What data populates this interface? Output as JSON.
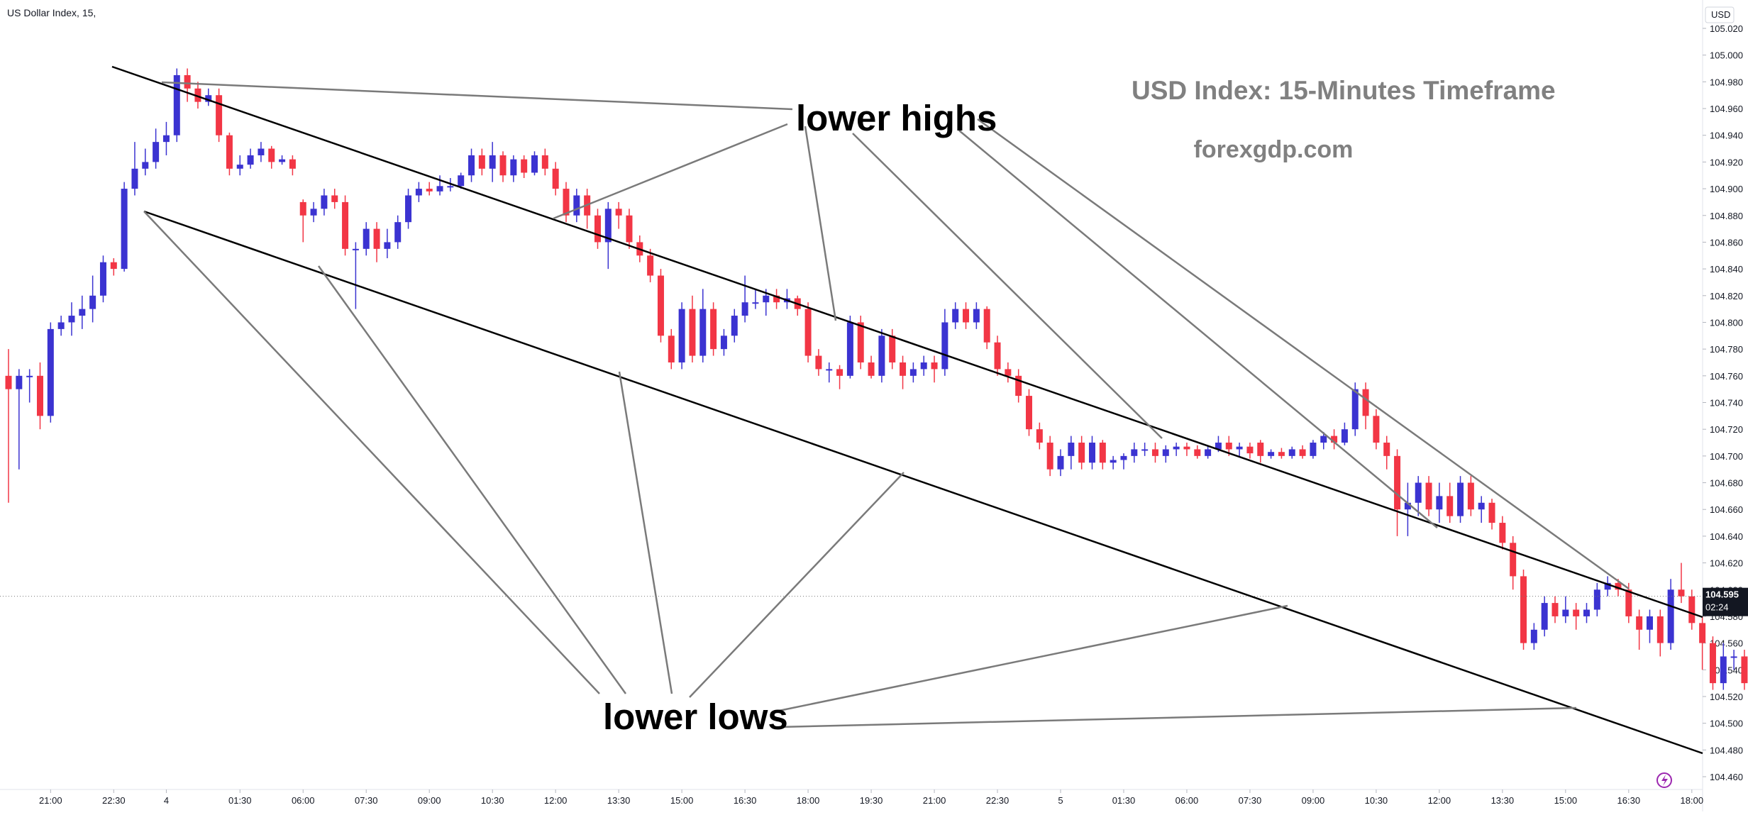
{
  "header": {
    "symbol_label": "US Dollar Index, 15,",
    "currency_label": "USD"
  },
  "annotations": {
    "title": "USD Index: 15-Minutes Timeframe",
    "site": "forexgdp.com",
    "lower_highs": "lower highs",
    "lower_lows": "lower lows"
  },
  "price_marker": {
    "price": "104.595",
    "countdown": "02:24"
  },
  "colors": {
    "bull": "#3B33D1",
    "bear": "#F23645",
    "channel": "#000000",
    "callout": "#7a7a7a",
    "axis_text": "#131722",
    "title_text": "#808080"
  },
  "chart_data": {
    "type": "candlestick",
    "interval": "15m",
    "ylim": [
      104.46,
      105.02
    ],
    "y_ticks": [
      "105.020",
      "105.000",
      "104.980",
      "104.960",
      "104.940",
      "104.920",
      "104.900",
      "104.880",
      "104.860",
      "104.840",
      "104.820",
      "104.800",
      "104.780",
      "104.760",
      "104.740",
      "104.720",
      "104.700",
      "104.680",
      "104.660",
      "104.640",
      "104.620",
      "104.600",
      "104.580",
      "104.560",
      "104.540",
      "104.520",
      "104.500",
      "104.480",
      "104.460"
    ],
    "x_ticks": [
      {
        "label": "21:00",
        "bar": 4
      },
      {
        "label": "22:30",
        "bar": 10
      },
      {
        "label": "4",
        "bar": 15
      },
      {
        "label": "01:30",
        "bar": 22
      },
      {
        "label": "06:00",
        "bar": 28
      },
      {
        "label": "07:30",
        "bar": 34
      },
      {
        "label": "09:00",
        "bar": 40
      },
      {
        "label": "10:30",
        "bar": 46
      },
      {
        "label": "12:00",
        "bar": 52
      },
      {
        "label": "13:30",
        "bar": 58
      },
      {
        "label": "15:00",
        "bar": 64
      },
      {
        "label": "16:30",
        "bar": 70
      },
      {
        "label": "18:00",
        "bar": 76
      },
      {
        "label": "19:30",
        "bar": 82
      },
      {
        "label": "21:00",
        "bar": 88
      },
      {
        "label": "22:30",
        "bar": 94
      },
      {
        "label": "5",
        "bar": 100
      },
      {
        "label": "01:30",
        "bar": 106
      },
      {
        "label": "06:00",
        "bar": 112
      },
      {
        "label": "07:30",
        "bar": 118
      },
      {
        "label": "09:00",
        "bar": 124
      },
      {
        "label": "10:30",
        "bar": 130
      },
      {
        "label": "12:00",
        "bar": 136
      },
      {
        "label": "13:30",
        "bar": 142
      },
      {
        "label": "15:00",
        "bar": 148
      },
      {
        "label": "16:30",
        "bar": 154
      },
      {
        "label": "18:00",
        "bar": 160
      }
    ],
    "current_price": 104.595,
    "candles": [
      [
        104.76,
        104.75,
        104.78,
        104.665
      ],
      [
        104.75,
        104.76,
        104.765,
        104.69
      ],
      [
        104.76,
        104.76,
        104.765,
        104.74
      ],
      [
        104.76,
        104.73,
        104.77,
        104.72
      ],
      [
        104.73,
        104.795,
        104.8,
        104.725
      ],
      [
        104.795,
        104.8,
        104.805,
        104.79
      ],
      [
        104.8,
        104.805,
        104.815,
        104.79
      ],
      [
        104.805,
        104.81,
        104.82,
        104.795
      ],
      [
        104.81,
        104.82,
        104.835,
        104.8
      ],
      [
        104.82,
        104.845,
        104.85,
        104.815
      ],
      [
        104.845,
        104.84,
        104.848,
        104.835
      ],
      [
        104.84,
        104.9,
        104.905,
        104.838
      ],
      [
        104.9,
        104.915,
        104.935,
        104.895
      ],
      [
        104.915,
        104.92,
        104.93,
        104.91
      ],
      [
        104.92,
        104.935,
        104.945,
        104.915
      ],
      [
        104.935,
        104.94,
        104.95,
        104.925
      ],
      [
        104.94,
        104.985,
        104.99,
        104.935
      ],
      [
        104.985,
        104.975,
        104.99,
        104.965
      ],
      [
        104.975,
        104.965,
        104.98,
        104.96
      ],
      [
        104.965,
        104.97,
        104.975,
        104.962
      ],
      [
        104.97,
        104.94,
        104.975,
        104.935
      ],
      [
        104.94,
        104.915,
        104.942,
        104.91
      ],
      [
        104.915,
        104.918,
        104.925,
        104.91
      ],
      [
        104.918,
        104.925,
        104.93,
        104.915
      ],
      [
        104.925,
        104.93,
        104.935,
        104.92
      ],
      [
        104.93,
        104.92,
        104.932,
        104.915
      ],
      [
        104.92,
        104.922,
        104.925,
        104.918
      ],
      [
        104.922,
        104.915,
        104.925,
        104.91
      ],
      [
        104.89,
        104.88,
        104.892,
        104.86
      ],
      [
        104.88,
        104.885,
        104.89,
        104.875
      ],
      [
        104.885,
        104.895,
        104.9,
        104.88
      ],
      [
        104.895,
        104.89,
        104.9,
        104.885
      ],
      [
        104.89,
        104.855,
        104.895,
        104.85
      ],
      [
        104.855,
        104.855,
        104.86,
        104.81
      ],
      [
        104.855,
        104.87,
        104.875,
        104.85
      ],
      [
        104.87,
        104.855,
        104.875,
        104.845
      ],
      [
        104.855,
        104.86,
        104.87,
        104.848
      ],
      [
        104.86,
        104.875,
        104.88,
        104.855
      ],
      [
        104.875,
        104.895,
        104.9,
        104.87
      ],
      [
        104.895,
        104.9,
        104.905,
        104.89
      ],
      [
        104.9,
        104.898,
        104.905,
        104.895
      ],
      [
        104.898,
        104.902,
        104.91,
        104.895
      ],
      [
        104.902,
        104.902,
        104.908,
        104.898
      ],
      [
        104.902,
        104.91,
        104.912,
        104.9
      ],
      [
        104.91,
        104.925,
        104.93,
        104.905
      ],
      [
        104.925,
        104.915,
        104.93,
        104.91
      ],
      [
        104.915,
        104.925,
        104.935,
        104.905
      ],
      [
        104.925,
        104.91,
        104.928,
        104.905
      ],
      [
        104.91,
        104.922,
        104.925,
        104.905
      ],
      [
        104.922,
        104.912,
        104.925,
        104.908
      ],
      [
        104.912,
        104.925,
        104.928,
        104.91
      ],
      [
        104.925,
        104.915,
        104.93,
        104.91
      ],
      [
        104.915,
        104.9,
        104.92,
        104.895
      ],
      [
        104.9,
        104.88,
        104.905,
        104.875
      ],
      [
        104.88,
        104.895,
        104.9,
        104.875
      ],
      [
        104.895,
        104.88,
        104.9,
        104.87
      ],
      [
        104.88,
        104.86,
        104.885,
        104.855
      ],
      [
        104.86,
        104.885,
        104.89,
        104.84
      ],
      [
        104.885,
        104.88,
        104.89,
        104.87
      ],
      [
        104.88,
        104.86,
        104.885,
        104.855
      ],
      [
        104.86,
        104.85,
        104.865,
        104.845
      ],
      [
        104.85,
        104.835,
        104.855,
        104.83
      ],
      [
        104.835,
        104.79,
        104.84,
        104.785
      ],
      [
        104.79,
        104.77,
        104.795,
        104.765
      ],
      [
        104.77,
        104.81,
        104.815,
        104.765
      ],
      [
        104.81,
        104.775,
        104.82,
        104.77
      ],
      [
        104.775,
        104.81,
        104.825,
        104.77
      ],
      [
        104.81,
        104.78,
        104.815,
        104.775
      ],
      [
        104.78,
        104.79,
        104.795,
        104.775
      ],
      [
        104.79,
        104.805,
        104.81,
        104.785
      ],
      [
        104.805,
        104.815,
        104.835,
        104.8
      ],
      [
        104.815,
        104.815,
        104.825,
        104.81
      ],
      [
        104.815,
        104.82,
        104.825,
        104.805
      ],
      [
        104.82,
        104.815,
        104.825,
        104.81
      ],
      [
        104.815,
        104.818,
        104.825,
        104.81
      ],
      [
        104.818,
        104.81,
        104.82,
        104.805
      ],
      [
        104.81,
        104.775,
        104.815,
        104.77
      ],
      [
        104.775,
        104.765,
        104.78,
        104.76
      ],
      [
        104.765,
        104.765,
        104.77,
        104.755
      ],
      [
        104.765,
        104.76,
        104.768,
        104.75
      ],
      [
        104.76,
        104.8,
        104.805,
        104.758
      ],
      [
        104.8,
        104.77,
        104.805,
        104.765
      ],
      [
        104.77,
        104.76,
        104.775,
        104.758
      ],
      [
        104.76,
        104.79,
        104.795,
        104.755
      ],
      [
        104.79,
        104.77,
        104.795,
        104.765
      ],
      [
        104.77,
        104.76,
        104.775,
        104.75
      ],
      [
        104.76,
        104.765,
        104.77,
        104.755
      ],
      [
        104.765,
        104.77,
        104.775,
        104.76
      ],
      [
        104.77,
        104.765,
        104.775,
        104.755
      ],
      [
        104.765,
        104.8,
        104.81,
        104.76
      ],
      [
        104.8,
        104.81,
        104.815,
        104.795
      ],
      [
        104.81,
        104.8,
        104.815,
        104.795
      ],
      [
        104.8,
        104.81,
        104.815,
        104.795
      ],
      [
        104.81,
        104.785,
        104.812,
        104.78
      ],
      [
        104.785,
        104.765,
        104.79,
        104.76
      ],
      [
        104.765,
        104.76,
        104.77,
        104.755
      ],
      [
        104.76,
        104.745,
        104.765,
        104.74
      ],
      [
        104.745,
        104.72,
        104.75,
        104.715
      ],
      [
        104.72,
        104.71,
        104.725,
        104.705
      ],
      [
        104.71,
        104.69,
        104.715,
        104.685
      ],
      [
        104.69,
        104.7,
        104.705,
        104.685
      ],
      [
        104.7,
        104.71,
        104.715,
        104.69
      ],
      [
        104.71,
        104.695,
        104.715,
        104.69
      ],
      [
        104.695,
        104.71,
        104.715,
        104.69
      ],
      [
        104.71,
        104.695,
        104.712,
        104.69
      ],
      [
        104.695,
        104.697,
        104.7,
        104.69
      ],
      [
        104.697,
        104.7,
        104.702,
        104.69
      ],
      [
        104.7,
        104.705,
        104.71,
        104.695
      ],
      [
        104.705,
        104.705,
        104.71,
        104.7
      ],
      [
        104.705,
        104.7,
        104.71,
        104.695
      ],
      [
        104.7,
        104.705,
        104.708,
        104.695
      ],
      [
        104.705,
        104.707,
        104.71,
        104.7
      ],
      [
        104.707,
        104.705,
        104.71,
        104.7
      ],
      [
        104.705,
        104.7,
        104.708,
        104.698
      ],
      [
        104.7,
        104.705,
        104.708,
        104.698
      ],
      [
        104.705,
        104.71,
        104.715,
        104.703
      ],
      [
        104.71,
        104.705,
        104.715,
        104.7
      ],
      [
        104.705,
        104.707,
        104.71,
        104.7
      ],
      [
        104.707,
        104.702,
        104.71,
        104.698
      ],
      [
        104.71,
        104.7,
        104.712,
        104.695
      ],
      [
        104.7,
        104.703,
        104.705,
        104.698
      ],
      [
        104.703,
        104.7,
        104.706,
        104.698
      ],
      [
        104.7,
        104.705,
        104.707,
        104.698
      ],
      [
        104.705,
        104.7,
        104.708,
        104.698
      ],
      [
        104.7,
        104.71,
        104.712,
        104.698
      ],
      [
        104.71,
        104.715,
        104.718,
        104.705
      ],
      [
        104.715,
        104.71,
        104.72,
        104.705
      ],
      [
        104.71,
        104.72,
        104.725,
        104.708
      ],
      [
        104.72,
        104.75,
        104.755,
        104.715
      ],
      [
        104.75,
        104.73,
        104.755,
        104.72
      ],
      [
        104.73,
        104.71,
        104.735,
        104.705
      ],
      [
        104.71,
        104.7,
        104.715,
        104.69
      ],
      [
        104.7,
        104.66,
        104.705,
        104.64
      ],
      [
        104.66,
        104.665,
        104.68,
        104.64
      ],
      [
        104.665,
        104.68,
        104.685,
        104.655
      ],
      [
        104.68,
        104.66,
        104.685,
        104.655
      ],
      [
        104.66,
        104.67,
        104.68,
        104.65
      ],
      [
        104.67,
        104.655,
        104.68,
        104.65
      ],
      [
        104.655,
        104.68,
        104.685,
        104.65
      ],
      [
        104.68,
        104.66,
        104.685,
        104.655
      ],
      [
        104.66,
        104.665,
        104.67,
        104.65
      ],
      [
        104.665,
        104.65,
        104.668,
        104.645
      ],
      [
        104.65,
        104.635,
        104.655,
        104.63
      ],
      [
        104.635,
        104.61,
        104.64,
        104.6
      ],
      [
        104.61,
        104.56,
        104.615,
        104.555
      ],
      [
        104.56,
        104.57,
        104.575,
        104.555
      ],
      [
        104.57,
        104.59,
        104.595,
        104.565
      ],
      [
        104.59,
        104.58,
        104.595,
        104.575
      ],
      [
        104.58,
        104.585,
        104.595,
        104.575
      ],
      [
        104.585,
        104.58,
        104.59,
        104.57
      ],
      [
        104.58,
        104.585,
        104.59,
        104.575
      ],
      [
        104.585,
        104.6,
        104.605,
        104.58
      ],
      [
        104.6,
        104.605,
        104.61,
        104.595
      ],
      [
        104.605,
        104.6,
        104.608,
        104.595
      ],
      [
        104.6,
        104.58,
        104.605,
        104.575
      ],
      [
        104.58,
        104.57,
        104.585,
        104.555
      ],
      [
        104.57,
        104.58,
        104.585,
        104.56
      ],
      [
        104.58,
        104.56,
        104.585,
        104.55
      ],
      [
        104.56,
        104.6,
        104.608,
        104.555
      ],
      [
        104.6,
        104.595,
        104.62,
        104.59
      ],
      [
        104.595,
        104.575,
        104.6,
        104.57
      ],
      [
        104.575,
        104.56,
        104.58,
        104.54
      ],
      [
        104.56,
        104.53,
        104.565,
        104.525
      ],
      [
        104.53,
        104.55,
        104.56,
        104.525
      ],
      [
        104.55,
        104.55,
        104.555,
        104.54
      ],
      [
        104.55,
        104.53,
        104.555,
        104.525
      ],
      [
        104.53,
        104.535,
        104.54,
        104.525
      ],
      [
        104.535,
        104.528,
        104.54,
        104.52
      ],
      [
        104.528,
        104.535,
        104.54,
        104.52
      ],
      [
        104.535,
        104.54,
        104.545,
        104.52
      ],
      [
        104.54,
        104.53,
        104.545,
        104.525
      ],
      [
        104.53,
        104.515,
        104.535,
        104.51
      ],
      [
        104.515,
        104.54,
        104.545,
        104.495
      ],
      [
        104.54,
        104.56,
        104.565,
        104.535
      ],
      [
        104.56,
        104.57,
        104.575,
        104.55
      ],
      [
        104.57,
        104.59,
        104.595,
        104.565
      ],
      [
        104.59,
        104.6,
        104.605,
        104.585
      ],
      [
        104.6,
        104.595,
        104.605,
        104.59
      ],
      [
        104.595,
        104.605,
        104.61,
        104.59
      ],
      [
        104.605,
        104.595,
        104.61,
        104.585
      ],
      [
        104.585,
        104.595,
        104.605,
        104.58
      ]
    ]
  }
}
